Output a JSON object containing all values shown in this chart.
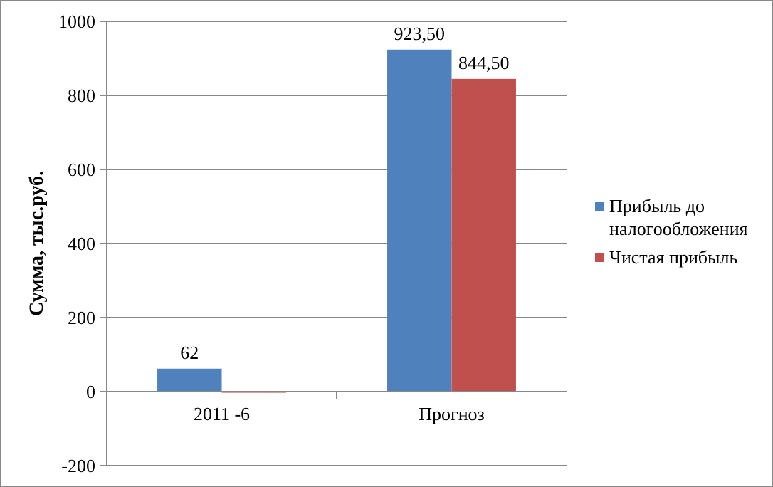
{
  "chart_data": {
    "type": "bar",
    "ylabel": "Сумма, тыс.руб.",
    "categories": [
      "2011 -6",
      "Прогноз"
    ],
    "series": [
      {
        "name": "Прибыль до налогообложения",
        "color": "#4f81bd",
        "values": [
          62,
          923.5
        ],
        "value_labels": [
          "62",
          "923,50"
        ]
      },
      {
        "name": "Чистая прибыль",
        "color": "#c0504d",
        "values": [
          -3,
          844.5
        ],
        "value_labels": [
          null,
          "844,50"
        ]
      }
    ],
    "ylim": [
      -200,
      1000
    ],
    "yticks": [
      -200,
      0,
      200,
      400,
      600,
      800,
      1000
    ],
    "grid": "y",
    "legend": "right"
  }
}
